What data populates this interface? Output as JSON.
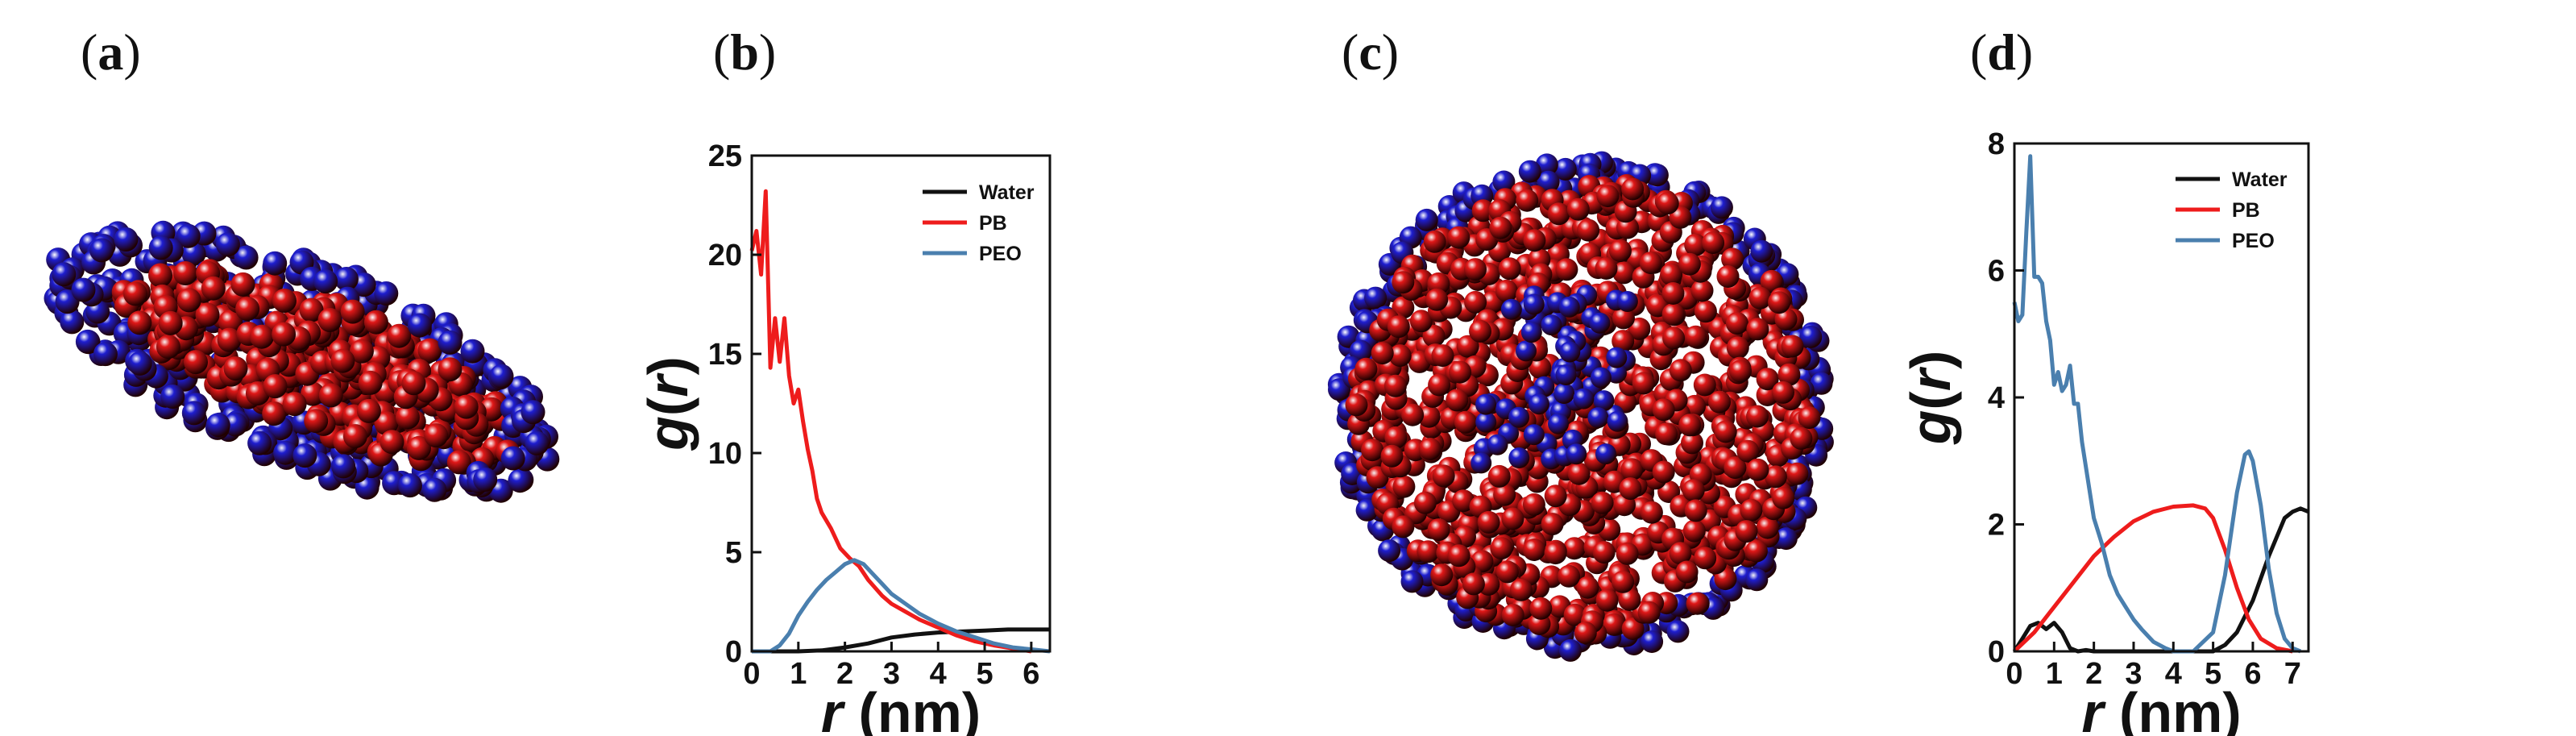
{
  "panels": {
    "a": "a",
    "b": "b",
    "c": "c",
    "d": "d"
  },
  "colors": {
    "water": "#111111",
    "pb": "#ee1c1c",
    "peo": "#4a7fae",
    "sphere_red": "#e01818",
    "sphere_blue": "#1e1ed0"
  },
  "chart_data": [
    {
      "id": "b",
      "type": "line",
      "xlabel_italic": "r",
      "xlabel_unit": "(nm)",
      "ylabel": "g(r)",
      "xlim": [
        0,
        6.4
      ],
      "ylim": [
        0,
        25
      ],
      "xticks": [
        0,
        1,
        2,
        3,
        4,
        5,
        6
      ],
      "yticks": [
        0,
        5,
        10,
        15,
        20,
        25
      ],
      "legend_position": "top-right",
      "series": [
        {
          "name": "Water",
          "color_key": "water",
          "x": [
            0,
            1.0,
            1.5,
            2.0,
            2.5,
            3.0,
            3.5,
            4.0,
            4.5,
            5.0,
            5.5,
            6.0,
            6.4
          ],
          "y": [
            0,
            0,
            0.05,
            0.2,
            0.4,
            0.7,
            0.85,
            0.95,
            1.0,
            1.05,
            1.1,
            1.1,
            1.1
          ]
        },
        {
          "name": "PB",
          "color_key": "pb",
          "x": [
            0,
            0.1,
            0.2,
            0.3,
            0.4,
            0.5,
            0.6,
            0.7,
            0.8,
            0.9,
            1.0,
            1.1,
            1.2,
            1.3,
            1.4,
            1.5,
            1.7,
            1.9,
            2.1,
            2.3,
            2.5,
            2.8,
            3.0,
            3.3,
            3.6,
            4.0,
            4.4,
            4.8,
            5.2,
            5.6,
            6.0
          ],
          "y": [
            20.2,
            21.2,
            19.0,
            23.2,
            14.3,
            16.8,
            14.6,
            16.8,
            13.9,
            12.5,
            13.2,
            11.6,
            10.2,
            9.1,
            7.7,
            7.0,
            6.2,
            5.2,
            4.7,
            4.3,
            3.6,
            2.8,
            2.4,
            2.0,
            1.6,
            1.2,
            0.8,
            0.5,
            0.3,
            0.15,
            0
          ]
        },
        {
          "name": "PEO",
          "color_key": "peo",
          "x": [
            0,
            0.4,
            0.6,
            0.8,
            1.0,
            1.2,
            1.4,
            1.6,
            1.8,
            2.0,
            2.2,
            2.4,
            2.6,
            2.8,
            3.0,
            3.3,
            3.6,
            4.0,
            4.4,
            4.8,
            5.2,
            5.6,
            6.0,
            6.4
          ],
          "y": [
            0,
            0,
            0.3,
            0.9,
            1.8,
            2.5,
            3.1,
            3.6,
            4.0,
            4.4,
            4.6,
            4.4,
            3.9,
            3.4,
            2.9,
            2.4,
            1.9,
            1.4,
            1.0,
            0.7,
            0.4,
            0.2,
            0.1,
            0
          ]
        }
      ]
    },
    {
      "id": "d",
      "type": "line",
      "xlabel_italic": "r",
      "xlabel_unit": "(nm)",
      "ylabel": "g(r)",
      "xlim": [
        0,
        7.4
      ],
      "ylim": [
        0,
        8
      ],
      "xticks": [
        0,
        1,
        2,
        3,
        4,
        5,
        6,
        7
      ],
      "yticks": [
        0,
        2,
        4,
        6,
        8
      ],
      "legend_position": "top-right",
      "series": [
        {
          "name": "Water",
          "color_key": "water",
          "x": [
            0,
            0.2,
            0.4,
            0.6,
            0.8,
            1.0,
            1.2,
            1.4,
            1.6,
            1.8,
            2.0,
            5.0,
            5.3,
            5.6,
            6.0,
            6.4,
            6.8,
            7.0,
            7.2,
            7.4
          ],
          "y": [
            0,
            0.2,
            0.4,
            0.45,
            0.35,
            0.45,
            0.3,
            0.05,
            0,
            0.02,
            0,
            0,
            0.1,
            0.3,
            0.8,
            1.5,
            2.1,
            2.2,
            2.25,
            2.2
          ]
        },
        {
          "name": "PB",
          "color_key": "pb",
          "x": [
            0,
            0.5,
            1.0,
            1.5,
            2.0,
            2.5,
            3.0,
            3.5,
            4.0,
            4.5,
            4.8,
            5.0,
            5.3,
            5.6,
            5.9,
            6.2,
            6.6,
            7.0
          ],
          "y": [
            0,
            0.3,
            0.7,
            1.1,
            1.5,
            1.8,
            2.05,
            2.2,
            2.28,
            2.3,
            2.25,
            2.1,
            1.6,
            1.0,
            0.5,
            0.2,
            0.05,
            0
          ]
        },
        {
          "name": "PEO",
          "color_key": "peo",
          "x": [
            0,
            0.1,
            0.2,
            0.3,
            0.4,
            0.5,
            0.6,
            0.7,
            0.8,
            0.9,
            1.0,
            1.1,
            1.2,
            1.3,
            1.4,
            1.5,
            1.6,
            1.7,
            1.8,
            2.0,
            2.2,
            2.4,
            2.6,
            2.8,
            3.0,
            3.2,
            3.5,
            3.8,
            4.0,
            4.5,
            5.0,
            5.3,
            5.6,
            5.8,
            5.9,
            6.0,
            6.2,
            6.4,
            6.6,
            6.8,
            7.0,
            7.2
          ],
          "y": [
            5.5,
            5.2,
            5.3,
            6.6,
            7.8,
            5.9,
            5.9,
            5.8,
            5.2,
            4.9,
            4.2,
            4.4,
            4.1,
            4.2,
            4.5,
            3.9,
            3.9,
            3.3,
            2.9,
            2.1,
            1.7,
            1.2,
            0.9,
            0.7,
            0.5,
            0.35,
            0.15,
            0.05,
            0,
            0,
            0.3,
            1.2,
            2.5,
            3.1,
            3.15,
            3.0,
            2.3,
            1.3,
            0.6,
            0.2,
            0.05,
            0
          ]
        }
      ]
    }
  ]
}
